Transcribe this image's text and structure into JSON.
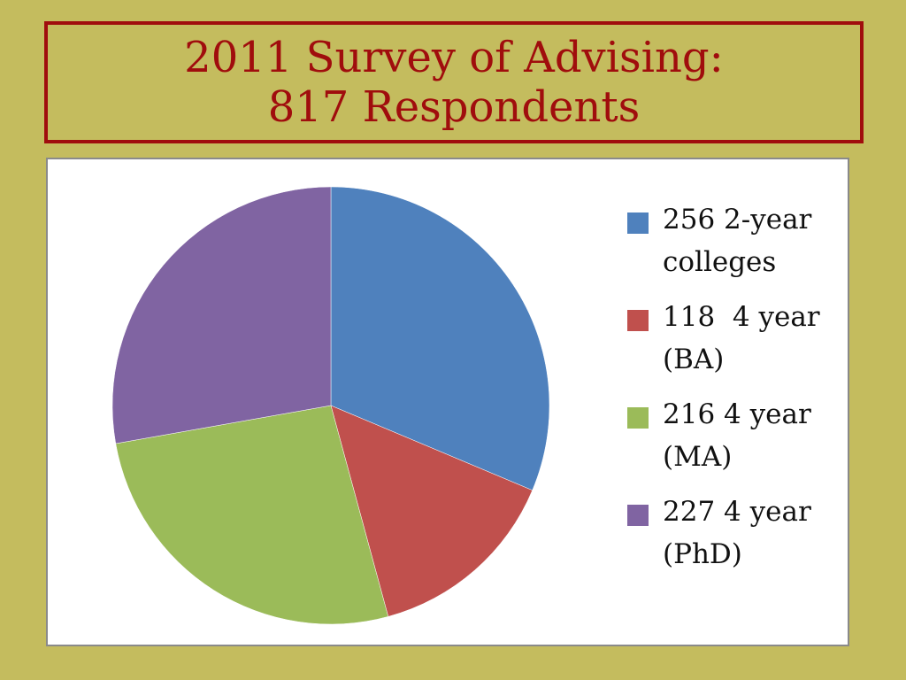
{
  "slide": {
    "title_line1": "2011 Survey of Advising:",
    "title_line2": "817 Respondents"
  },
  "chart_data": {
    "type": "pie",
    "title": "",
    "legend_position": "right",
    "slices": [
      {
        "label": "256 2-year colleges",
        "value": 256,
        "color": "#4f81bd"
      },
      {
        "label": "118  4 year (BA)",
        "value": 118,
        "color": "#c0504d"
      },
      {
        "label": "216 4 year (MA)",
        "value": 216,
        "color": "#9bbb59"
      },
      {
        "label": "227 4 year (PhD)",
        "value": 227,
        "color": "#8064a2"
      }
    ]
  }
}
